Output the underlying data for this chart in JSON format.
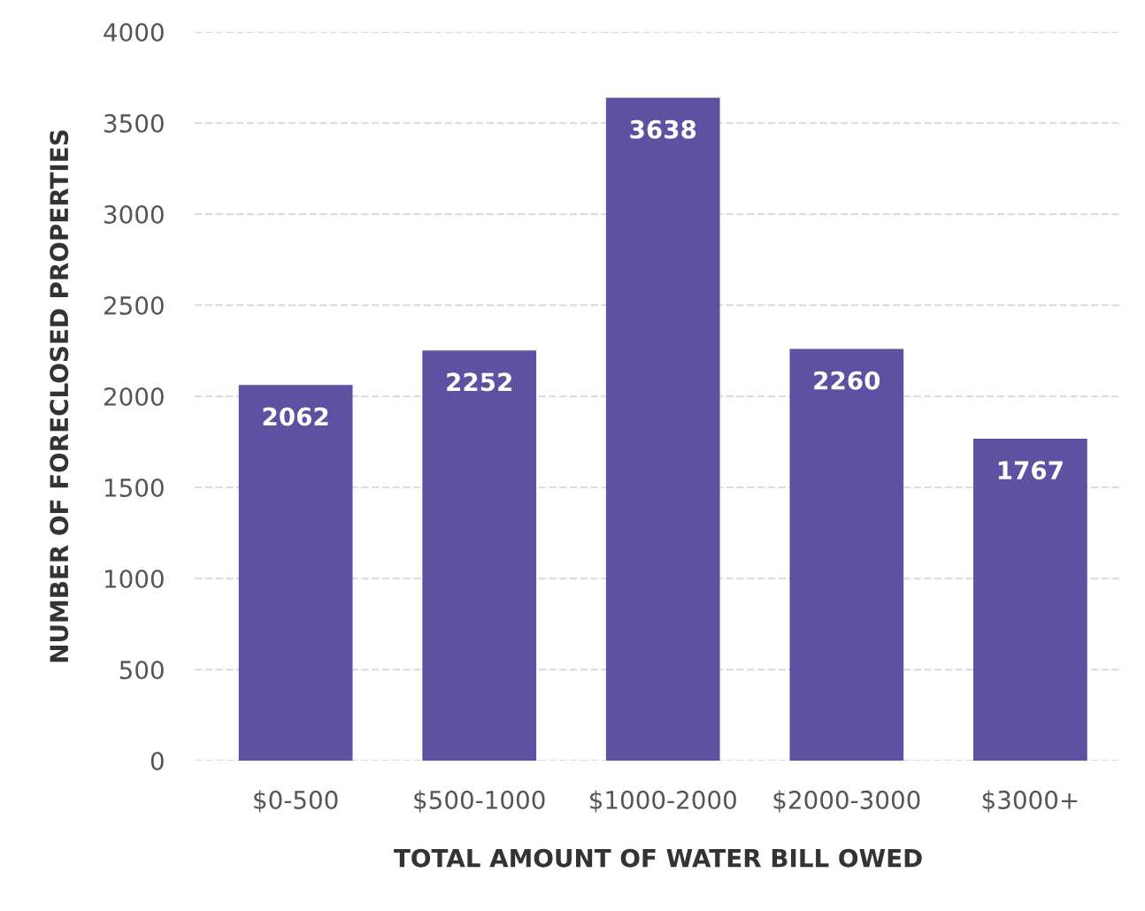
{
  "chart_data": {
    "type": "bar",
    "xlabel": "TOTAL AMOUNT OF WATER BILL OWED",
    "ylabel": "NUMBER OF FORECLOSED PROPERTIES",
    "categories": [
      "$0-500",
      "$500-1000",
      "$1000-2000",
      "$2000-3000",
      "$3000+"
    ],
    "values": [
      2062,
      2252,
      3638,
      2260,
      1767
    ],
    "color": "#5e51a1",
    "ylim": [
      0,
      4000
    ],
    "yticks": [
      0,
      500,
      1000,
      1500,
      2000,
      2500,
      3000,
      3500,
      4000
    ],
    "grid": "y",
    "data_labels": true
  }
}
